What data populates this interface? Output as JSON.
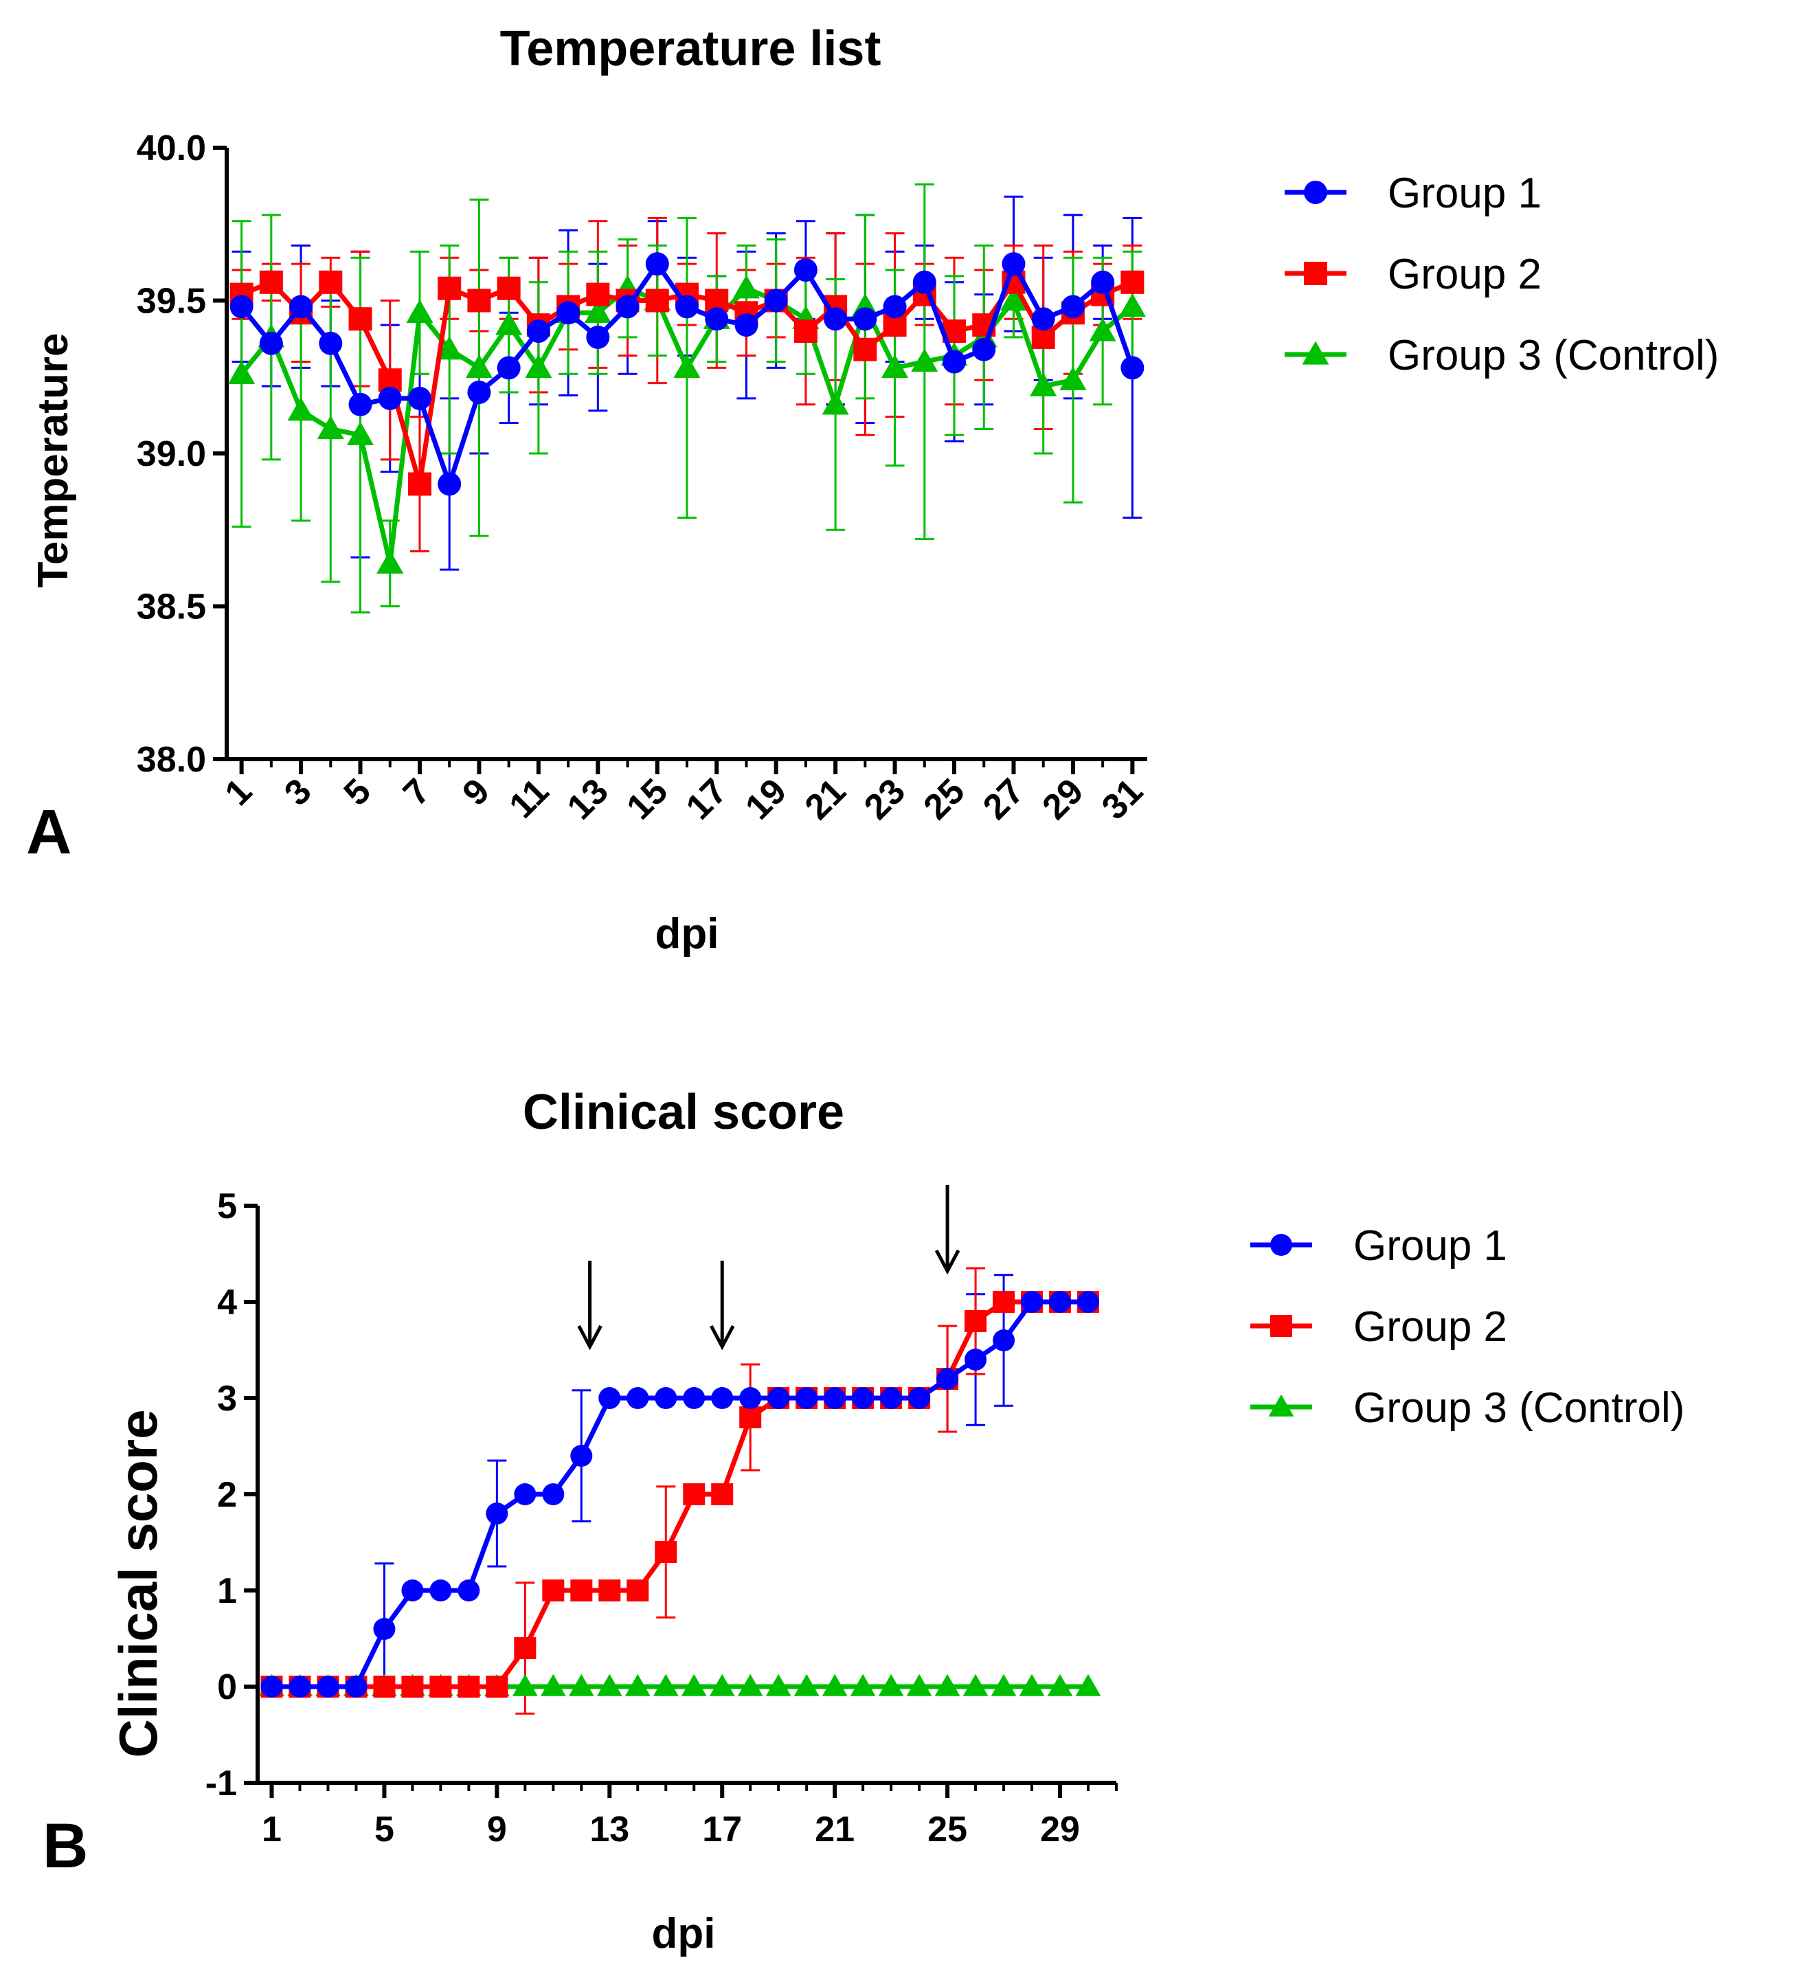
{
  "figure": {
    "panel_a_label": "A",
    "panel_b_label": "B"
  },
  "colors": {
    "group1": "#0000FF",
    "group2": "#FF0000",
    "group3": "#00BF00",
    "axis": "#000000"
  },
  "chart_data": [
    {
      "type": "line",
      "title": "Temperature list",
      "xlabel": "dpi",
      "ylabel": "Temperature",
      "ylim": [
        38.0,
        40.0
      ],
      "yticks": [
        "38.0",
        "38.5",
        "39.0",
        "39.5",
        "40.0"
      ],
      "xlim": [
        0.5,
        31.5
      ],
      "xticks": [
        "1",
        "3",
        "5",
        "7",
        "9",
        "11",
        "13",
        "15",
        "17",
        "19",
        "21",
        "23",
        "25",
        "27",
        "29",
        "31"
      ],
      "legend_position": "right",
      "series": [
        {
          "name": "Group 1",
          "marker": "circle",
          "x": [
            1,
            2,
            3,
            4,
            5,
            6,
            7,
            8,
            9,
            10,
            11,
            12,
            13,
            14,
            15,
            16,
            17,
            18,
            19,
            20,
            21,
            22,
            23,
            24,
            25,
            26,
            27,
            28,
            29,
            30,
            31
          ],
          "values": [
            39.48,
            39.36,
            39.48,
            39.36,
            39.16,
            39.18,
            39.18,
            38.9,
            39.2,
            39.28,
            39.4,
            39.46,
            39.38,
            39.48,
            39.62,
            39.48,
            39.44,
            39.42,
            39.5,
            39.6,
            39.44,
            39.44,
            39.48,
            39.56,
            39.3,
            39.34,
            39.62,
            39.44,
            39.48,
            39.56,
            39.28
          ],
          "errors": [
            0.18,
            0.14,
            0.2,
            0.14,
            0.5,
            0.24,
            0.26,
            0.28,
            0.2,
            0.18,
            0.24,
            0.27,
            0.24,
            0.22,
            0.14,
            0.16,
            0.14,
            0.24,
            0.22,
            0.16,
            0.28,
            0.34,
            0.18,
            0.12,
            0.26,
            0.18,
            0.22,
            0.2,
            0.3,
            0.12,
            0.49
          ]
        },
        {
          "name": "Group 2",
          "marker": "square",
          "x": [
            1,
            2,
            3,
            4,
            5,
            6,
            7,
            8,
            9,
            10,
            11,
            12,
            13,
            14,
            15,
            16,
            17,
            18,
            19,
            20,
            21,
            22,
            23,
            24,
            25,
            26,
            27,
            28,
            29,
            30,
            31
          ],
          "values": [
            39.52,
            39.56,
            39.46,
            39.56,
            39.44,
            39.24,
            38.9,
            39.54,
            39.5,
            39.54,
            39.42,
            39.48,
            39.52,
            39.5,
            39.5,
            39.52,
            39.5,
            39.46,
            39.5,
            39.4,
            39.48,
            39.34,
            39.42,
            39.52,
            39.4,
            39.42,
            39.56,
            39.38,
            39.46,
            39.52,
            39.56
          ],
          "errors": [
            0.08,
            0.06,
            0.16,
            0.08,
            0.22,
            0.26,
            0.22,
            0.1,
            0.1,
            0.1,
            0.22,
            0.14,
            0.24,
            0.18,
            0.27,
            0.1,
            0.22,
            0.14,
            0.12,
            0.24,
            0.24,
            0.28,
            0.3,
            0.1,
            0.24,
            0.18,
            0.12,
            0.3,
            0.2,
            0.1,
            0.12
          ]
        },
        {
          "name": "Group 3 (Control)",
          "marker": "triangle",
          "x": [
            1,
            2,
            3,
            4,
            5,
            6,
            7,
            8,
            9,
            10,
            11,
            12,
            13,
            14,
            15,
            16,
            17,
            18,
            19,
            20,
            21,
            22,
            23,
            24,
            25,
            26,
            27,
            28,
            29,
            30,
            31
          ],
          "values": [
            39.26,
            39.38,
            39.14,
            39.08,
            39.06,
            38.64,
            39.46,
            39.34,
            39.28,
            39.42,
            39.28,
            39.46,
            39.46,
            39.54,
            39.5,
            39.28,
            39.44,
            39.54,
            39.5,
            39.44,
            39.16,
            39.48,
            39.28,
            39.3,
            39.32,
            39.38,
            39.5,
            39.22,
            39.24,
            39.4,
            39.48
          ],
          "errors": [
            0.5,
            0.4,
            0.36,
            0.5,
            0.58,
            0.14,
            0.2,
            0.34,
            0.55,
            0.22,
            0.28,
            0.2,
            0.2,
            0.16,
            0.18,
            0.49,
            0.14,
            0.14,
            0.2,
            0.18,
            0.41,
            0.3,
            0.32,
            0.58,
            0.26,
            0.3,
            0.12,
            0.22,
            0.4,
            0.24,
            0.18
          ]
        }
      ]
    },
    {
      "type": "line",
      "title": "Clinical score",
      "xlabel": "dpi",
      "ylabel": "Clinical score",
      "ylim": [
        -1,
        5
      ],
      "yticks": [
        "-1",
        "0",
        "1",
        "2",
        "3",
        "4",
        "5"
      ],
      "xlim": [
        0.5,
        31
      ],
      "xticks": [
        "1",
        "5",
        "9",
        "13",
        "17",
        "21",
        "25",
        "29"
      ],
      "legend_position": "right",
      "arrows_at_dpi": [
        12.3,
        17,
        25
      ],
      "series": [
        {
          "name": "Group 1",
          "marker": "circle",
          "x": [
            1,
            2,
            3,
            4,
            5,
            6,
            7,
            8,
            9,
            10,
            11,
            12,
            13,
            14,
            15,
            16,
            17,
            18,
            19,
            20,
            21,
            22,
            23,
            24,
            25,
            26,
            27,
            28,
            29,
            30
          ],
          "values": [
            0,
            0,
            0,
            0,
            0.6,
            1,
            1,
            1,
            1.8,
            2,
            2,
            2.4,
            3,
            3,
            3,
            3,
            3,
            3,
            3,
            3,
            3,
            3,
            3,
            3,
            3.2,
            3.4,
            3.6,
            4,
            4,
            4
          ],
          "errors": [
            0,
            0,
            0,
            0,
            0.68,
            0,
            0,
            0,
            0.55,
            0,
            0,
            0.68,
            0,
            0,
            0,
            0,
            0,
            0,
            0,
            0,
            0,
            0,
            0,
            0,
            0.55,
            0.68,
            0.68,
            0,
            0,
            0
          ]
        },
        {
          "name": "Group 2",
          "marker": "square",
          "x": [
            1,
            2,
            3,
            4,
            5,
            6,
            7,
            8,
            9,
            10,
            11,
            12,
            13,
            14,
            15,
            16,
            17,
            18,
            19,
            20,
            21,
            22,
            23,
            24,
            25,
            26,
            27,
            28,
            29,
            30
          ],
          "values": [
            0,
            0,
            0,
            0,
            0,
            0,
            0,
            0,
            0,
            0.4,
            1,
            1,
            1,
            1,
            1.4,
            2,
            2,
            2.8,
            3,
            3,
            3,
            3,
            3,
            3,
            3.2,
            3.8,
            4,
            4,
            4,
            4
          ],
          "errors": [
            0,
            0,
            0,
            0,
            0,
            0,
            0,
            0,
            0,
            0.68,
            0,
            0,
            0,
            0,
            0.68,
            0,
            0,
            0.55,
            0,
            0,
            0,
            0,
            0,
            0,
            0.55,
            0.55,
            0,
            0,
            0,
            0
          ]
        },
        {
          "name": "Group 3 (Control)",
          "marker": "triangle",
          "x": [
            1,
            2,
            3,
            4,
            5,
            6,
            7,
            8,
            9,
            10,
            11,
            12,
            13,
            14,
            15,
            16,
            17,
            18,
            19,
            20,
            21,
            22,
            23,
            24,
            25,
            26,
            27,
            28,
            29,
            30
          ],
          "values": [
            0,
            0,
            0,
            0,
            0,
            0,
            0,
            0,
            0,
            0,
            0,
            0,
            0,
            0,
            0,
            0,
            0,
            0,
            0,
            0,
            0,
            0,
            0,
            0,
            0,
            0,
            0,
            0,
            0,
            0
          ],
          "errors": [
            0,
            0,
            0,
            0,
            0,
            0,
            0,
            0,
            0,
            0,
            0,
            0,
            0,
            0,
            0,
            0,
            0,
            0,
            0,
            0,
            0,
            0,
            0,
            0,
            0,
            0,
            0,
            0,
            0,
            0
          ]
        }
      ]
    }
  ]
}
